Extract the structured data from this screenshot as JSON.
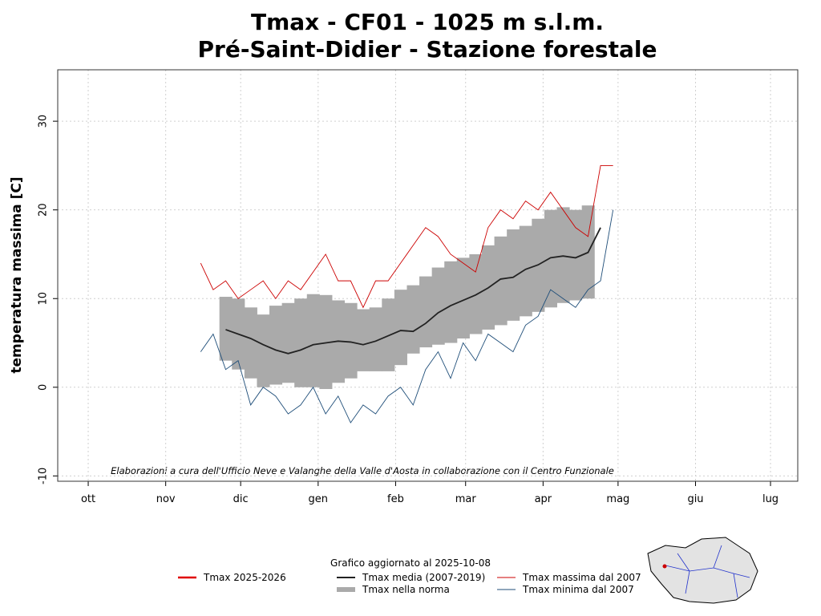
{
  "chart_data": {
    "type": "line",
    "title": "Tmax - CF01 - 1025 m s.l.m.",
    "subtitle": "Pré-Saint-Didier - Stazione forestale",
    "y_label": "temperatura massima [C]",
    "annotation": "Elaborazioni a cura dell'Ufficio Neve e Valanghe della Valle d'Aosta in collaborazione con il Centro Funzionale",
    "update_note": "Grafico aggiornato al 2025-10-08",
    "xlim": [
      -12.2,
      283.9
    ],
    "xticks": [
      {
        "value": 0,
        "label": "ott"
      },
      {
        "value": 31,
        "label": "nov"
      },
      {
        "value": 61,
        "label": "dic"
      },
      {
        "value": 92,
        "label": "gen"
      },
      {
        "value": 123,
        "label": "feb"
      },
      {
        "value": 151,
        "label": "mar"
      },
      {
        "value": 182,
        "label": "apr"
      },
      {
        "value": 212,
        "label": "mag"
      },
      {
        "value": 243,
        "label": "giu"
      },
      {
        "value": 273,
        "label": "lug"
      }
    ],
    "ylim": [
      -10.6,
      35.8
    ],
    "yticks": [
      -10,
      0,
      10,
      20,
      30
    ],
    "grid": true,
    "x": [
      45,
      50,
      55,
      60,
      65,
      70,
      75,
      80,
      85,
      90,
      95,
      100,
      105,
      110,
      115,
      120,
      125,
      130,
      135,
      140,
      145,
      150,
      155,
      160,
      165,
      170,
      175,
      180,
      185,
      190,
      195,
      200,
      205,
      210
    ],
    "series": [
      {
        "name": "Tmax 2025-2026",
        "color": "#e00000",
        "values": [
          null,
          null,
          null,
          null,
          null,
          null,
          null,
          null,
          null,
          null,
          null,
          null,
          null,
          null,
          null,
          null,
          null,
          null,
          null,
          null,
          null,
          null,
          null,
          null,
          null,
          null,
          null,
          null,
          null,
          null,
          null,
          null,
          null,
          null
        ]
      },
      {
        "name": "Tmax media (2007-2019)",
        "color": "#222222",
        "values": [
          null,
          null,
          6.5,
          6,
          5.5,
          4.8,
          4.2,
          3.8,
          4.2,
          4.8,
          5.0,
          5.2,
          5.1,
          4.8,
          5.2,
          5.8,
          6.4,
          6.3,
          7.2,
          8.4,
          9.2,
          9.8,
          10.4,
          11.2,
          12.2,
          12.4,
          13.3,
          13.8,
          14.6,
          14.8,
          14.6,
          15.2,
          18.0,
          null
        ]
      },
      {
        "name": "Tmax nella norma",
        "type": "band",
        "color": "#aaaaaa",
        "high": [
          null,
          null,
          10.2,
          10,
          9,
          8.2,
          9.2,
          9.5,
          10,
          10.5,
          10.4,
          9.8,
          9.5,
          8.8,
          9.0,
          10,
          11,
          11.5,
          12.5,
          13.5,
          14.2,
          14.6,
          15,
          16,
          17,
          17.8,
          18.2,
          19,
          20,
          20.3,
          20,
          20.5,
          null,
          null
        ],
        "low": [
          null,
          null,
          3,
          2,
          1,
          0,
          0.3,
          0.5,
          0,
          0,
          -0.2,
          0.5,
          1,
          1.8,
          1.8,
          1.8,
          2.5,
          3.8,
          4.5,
          4.8,
          5,
          5.5,
          6,
          6.5,
          7,
          7.5,
          8,
          8.5,
          9,
          9.5,
          9.8,
          10,
          null,
          null
        ]
      },
      {
        "name": "Tmax massima dal 2007",
        "color": "#cc0000",
        "values": [
          14,
          11,
          12,
          10,
          11,
          12,
          10,
          12,
          11,
          13,
          15,
          12,
          12,
          9,
          12,
          12,
          14,
          16,
          18,
          17,
          15,
          14,
          13,
          18,
          20,
          19,
          21,
          20,
          22,
          20,
          18,
          17,
          25,
          25
        ]
      },
      {
        "name": "Tmax minima dal 2007",
        "color": "#1f4e79",
        "values": [
          4,
          6,
          2,
          3,
          -2,
          0,
          -1,
          -3,
          -2,
          0,
          -3,
          -1,
          -4,
          -2,
          -3,
          -1,
          0,
          -2,
          2,
          4,
          1,
          5,
          3,
          6,
          5,
          4,
          7,
          8,
          11,
          10,
          9,
          11,
          12,
          20
        ]
      }
    ]
  }
}
